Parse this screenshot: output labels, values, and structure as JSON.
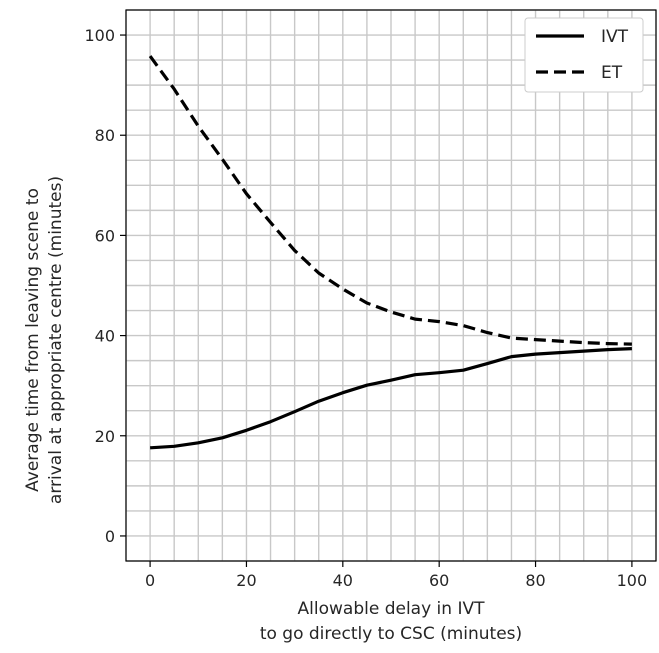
{
  "chart_data": {
    "type": "line",
    "title": "",
    "xlabel": [
      "Allowable delay in IVT",
      "to go directly to CSC (minutes)"
    ],
    "ylabel": [
      "Average time from leaving scene to",
      "arrival at appropriate centre (minutes)"
    ],
    "xlim": [
      -5,
      105
    ],
    "ylim": [
      -5,
      105
    ],
    "xticks": [
      0,
      20,
      40,
      60,
      80,
      100
    ],
    "yticks": [
      0,
      20,
      40,
      60,
      80,
      100
    ],
    "grid": true,
    "grid_step": 5,
    "legend_position": "top-right",
    "x": [
      0,
      5,
      10,
      15,
      20,
      25,
      30,
      35,
      40,
      45,
      50,
      55,
      60,
      65,
      70,
      75,
      80,
      85,
      90,
      95,
      100
    ],
    "series": [
      {
        "name": "IVT",
        "style": "solid",
        "color": "#000000",
        "values": [
          17.6,
          17.9,
          18.6,
          19.6,
          21.1,
          22.8,
          24.8,
          26.9,
          28.6,
          30.1,
          31.1,
          32.2,
          32.6,
          33.1,
          34.4,
          35.8,
          36.3,
          36.6,
          36.9,
          37.2,
          37.4
        ]
      },
      {
        "name": "ET",
        "style": "dashed",
        "color": "#000000",
        "values": [
          95.8,
          89.2,
          81.8,
          75.2,
          68.3,
          62.6,
          57.0,
          52.5,
          49.3,
          46.5,
          44.7,
          43.3,
          42.8,
          42.0,
          40.6,
          39.5,
          39.2,
          38.9,
          38.6,
          38.4,
          38.3
        ]
      }
    ]
  }
}
